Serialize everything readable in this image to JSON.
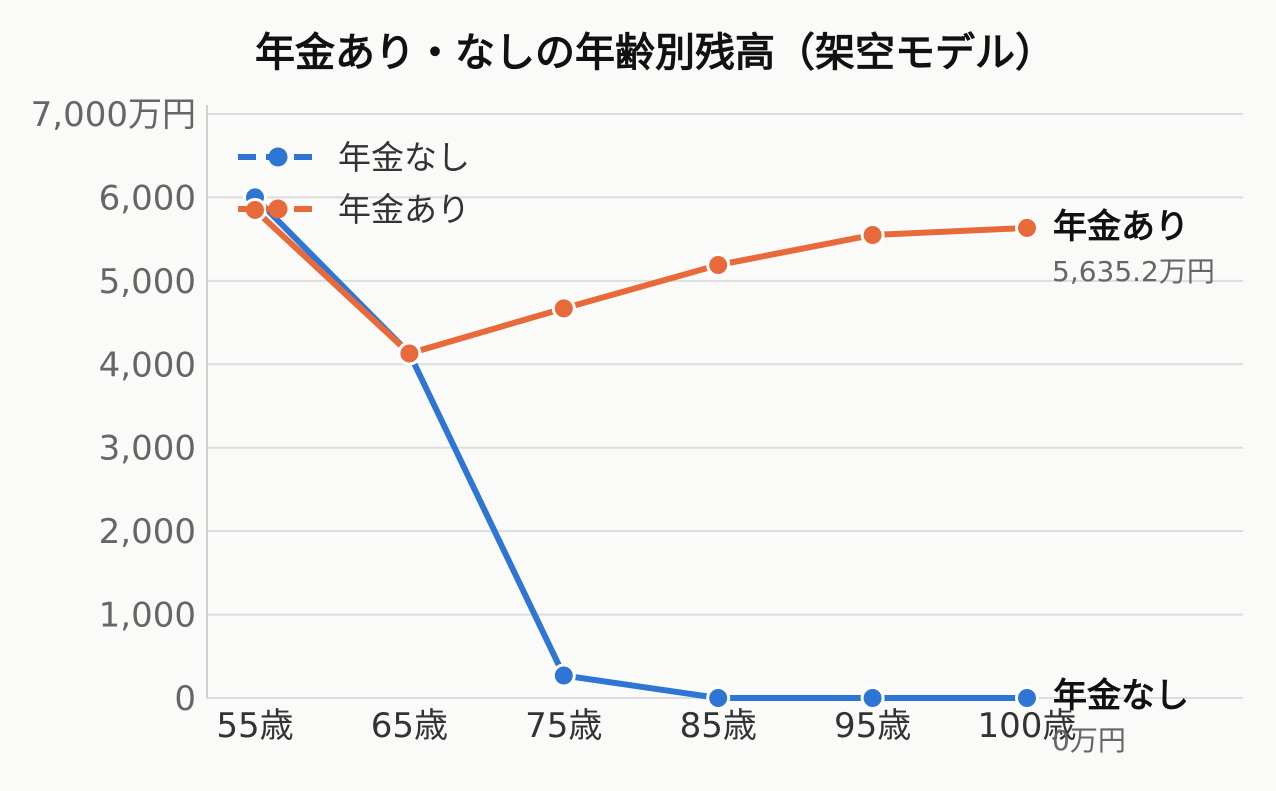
{
  "chart_data": {
    "type": "line",
    "title": "年金あり・なしの年齢別残高（架空モデル）",
    "categories": [
      "55歳",
      "65歳",
      "75歳",
      "85歳",
      "95歳",
      "100歳"
    ],
    "y_ticks": [
      "0",
      "1,000",
      "2,000",
      "3,000",
      "4,000",
      "5,000",
      "6,000",
      "7,000万円"
    ],
    "ylim": [
      0,
      7000
    ],
    "grid": "horizontal",
    "legend_position": "top-left",
    "series": [
      {
        "name": "年金なし",
        "color": "#2e75d4",
        "values": [
          6000,
          4130,
          270,
          0,
          0,
          0
        ],
        "end_label": "年金なし",
        "end_value": "0万円"
      },
      {
        "name": "年金あり",
        "color": "#e8693a",
        "values": [
          5850,
          4130,
          4670,
          5190,
          5550,
          5635.2
        ],
        "end_label": "年金あり",
        "end_value": "5,635.2万円"
      }
    ]
  }
}
